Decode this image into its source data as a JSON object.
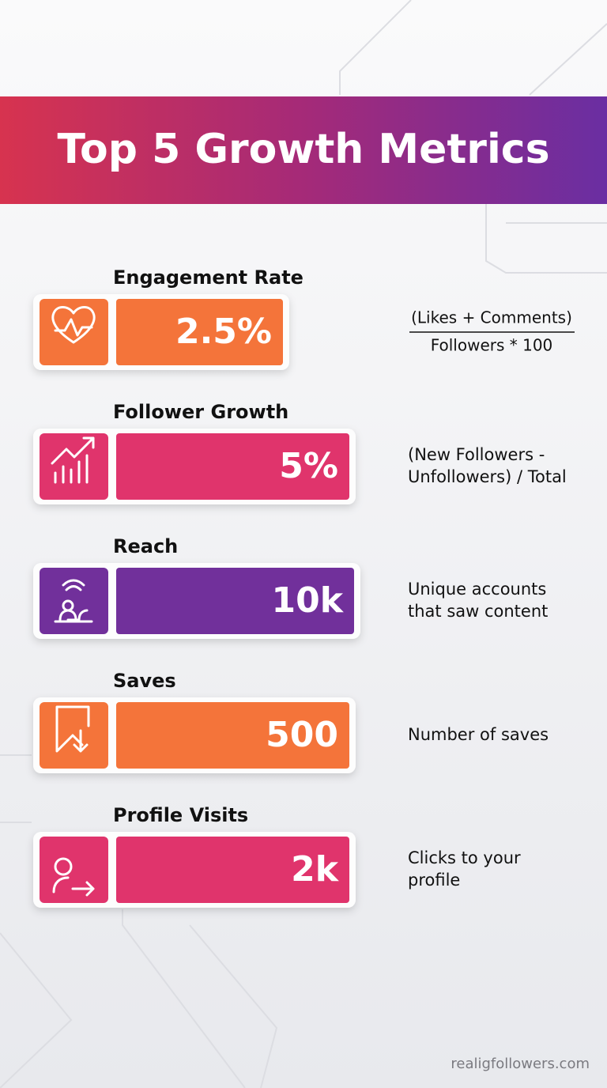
{
  "header": {
    "title": "Top 5 Growth Metrics"
  },
  "metrics": [
    {
      "label": "Engagement Rate",
      "value": "2.5%",
      "formula": {
        "numerator": "(Likes + Comments)",
        "denominator": "Followers * 100"
      }
    },
    {
      "label": "Follower Growth",
      "value": "5%",
      "description": [
        "(New Followers -",
        "Unfollowers) / Total"
      ]
    },
    {
      "label": "Reach",
      "value": "10k",
      "description": [
        "Unique accounts",
        "that saw content"
      ]
    },
    {
      "label": "Saves",
      "value": "500",
      "description": [
        "Number of saves"
      ]
    },
    {
      "label": "Profile Visits",
      "value": "2k",
      "description": [
        "Clicks to your",
        "profile"
      ]
    }
  ],
  "footer": {
    "website": "realigfollowers.com"
  }
}
